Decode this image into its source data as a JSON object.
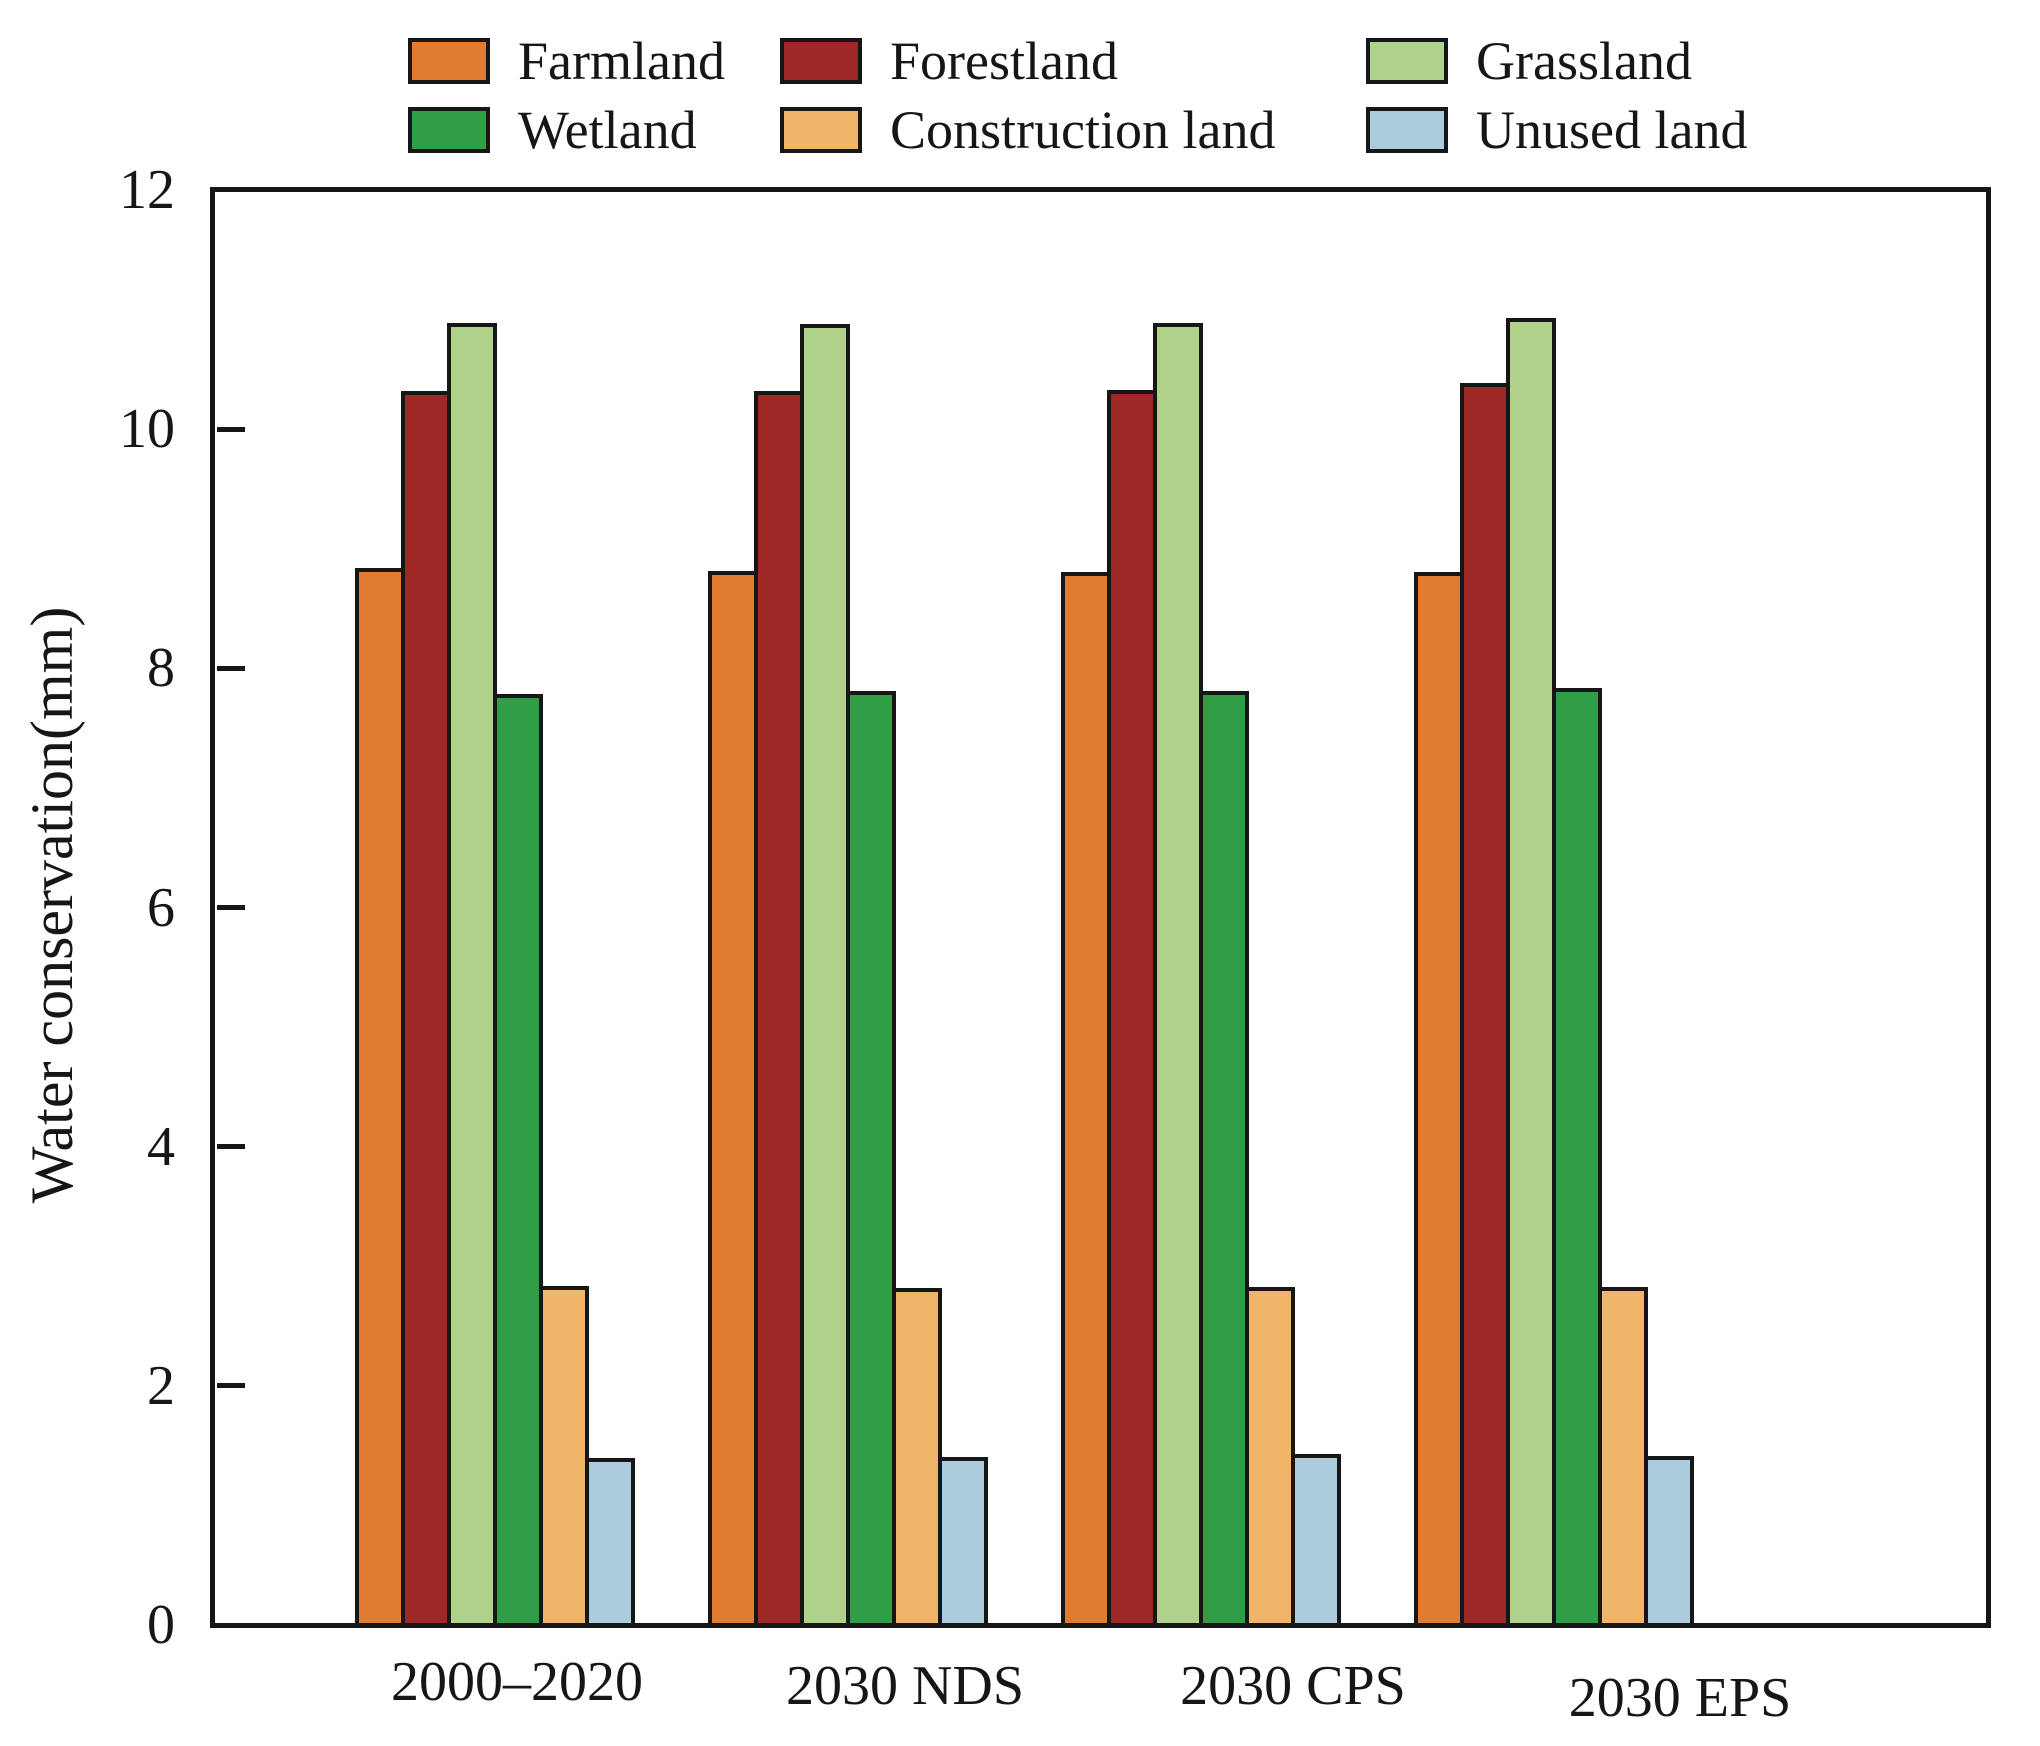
{
  "chart_data": {
    "type": "bar",
    "title": "",
    "ylabel": "Water conservation(mm)",
    "xlabel": "",
    "ylim": [
      0,
      12
    ],
    "yticks": [
      0,
      2,
      4,
      6,
      8,
      10,
      12
    ],
    "grid": false,
    "legend_position": "top",
    "categories": [
      "2000–2020",
      "2030 NDS",
      "2030 CPS",
      "2030 EPS"
    ],
    "series": [
      {
        "name": "Farmland",
        "color": "#E07B30",
        "values": [
          8.82,
          8.8,
          8.79,
          8.79
        ]
      },
      {
        "name": "Forestland",
        "color": "#9E2826",
        "values": [
          10.3,
          10.3,
          10.31,
          10.37
        ]
      },
      {
        "name": "Grassland",
        "color": "#AFD189",
        "values": [
          10.87,
          10.86,
          10.87,
          10.91
        ]
      },
      {
        "name": "Wetland",
        "color": "#2F9E47",
        "values": [
          7.77,
          7.79,
          7.79,
          7.82
        ]
      },
      {
        "name": "Construction land",
        "color": "#F0B569",
        "values": [
          2.82,
          2.8,
          2.81,
          2.81
        ]
      },
      {
        "name": "Unused land",
        "color": "#ACCBDC",
        "values": [
          1.38,
          1.39,
          1.41,
          1.4
        ]
      }
    ],
    "axis_color": "#161616",
    "background_color": "#FFFFFF"
  }
}
